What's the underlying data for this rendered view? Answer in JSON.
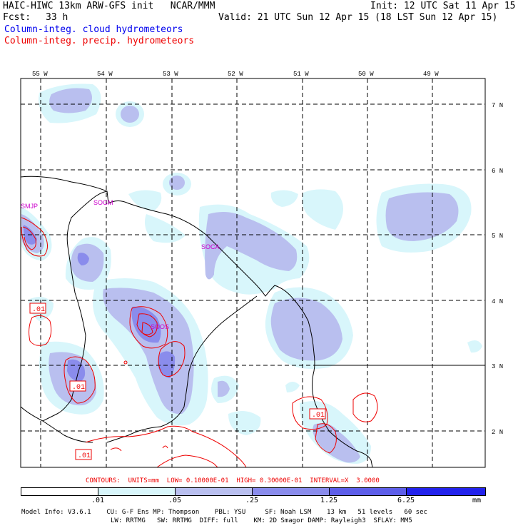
{
  "header": {
    "model_line": "HAIC-HIWC 13km ARW-GFS init   NCAR/MMM",
    "init_line": "Init: 12 UTC Sat 11 Apr 15",
    "fcst_label": "Fcst:",
    "fcst_value": "33 h",
    "valid_line": "Valid: 21 UTC Sun 12 Apr 15 (18 LST Sun 12 Apr 15)",
    "field1": "Column-integ. cloud hydrometeors",
    "field2": "Column-integ. precip. hydrometeors",
    "field1_color": "#0000ee",
    "field2_color": "#ee0000"
  },
  "map": {
    "lon_labels": [
      "55 W",
      "54 W",
      "53 W",
      "52 W",
      "51 W",
      "50 W",
      "49 W"
    ],
    "lat_labels": [
      "7 N",
      "6 N",
      "5 N",
      "4 N",
      "3 N",
      "2 N"
    ],
    "stations": [
      "SMJP",
      "SOGM",
      "SOCA",
      "SOOS"
    ],
    "station_color": "#cc00cc",
    "contour_labels": [
      ".01",
      ".01",
      ".01",
      ".01"
    ],
    "contour_color": "#ee0000"
  },
  "contours_line": "CONTOURS:  UNITS=mm  LOW= 0.10000E-01  HIGH= 0.30000E-01  INTERVAL=X  3.0000",
  "colorbar": {
    "labels": [
      ".01",
      ".05",
      ".25",
      "1.25",
      "6.25"
    ],
    "units": "mm",
    "colors": [
      "#ffffff",
      "#d8f6fb",
      "#b9bfef",
      "#8a8cec",
      "#5d5ee9",
      "#2222ec"
    ]
  },
  "footer": {
    "line1": "Model Info: V3.6.1    CU: G-F Ens MP: Thompson    PBL: YSU     SF: Noah LSM    13 km   51 levels   60 sec",
    "line2": "LW: RRTMG   SW: RRTMG  DIFF: full    KM: 2D Smagor DAMP: Rayleigh3  SFLAY: MM5"
  }
}
